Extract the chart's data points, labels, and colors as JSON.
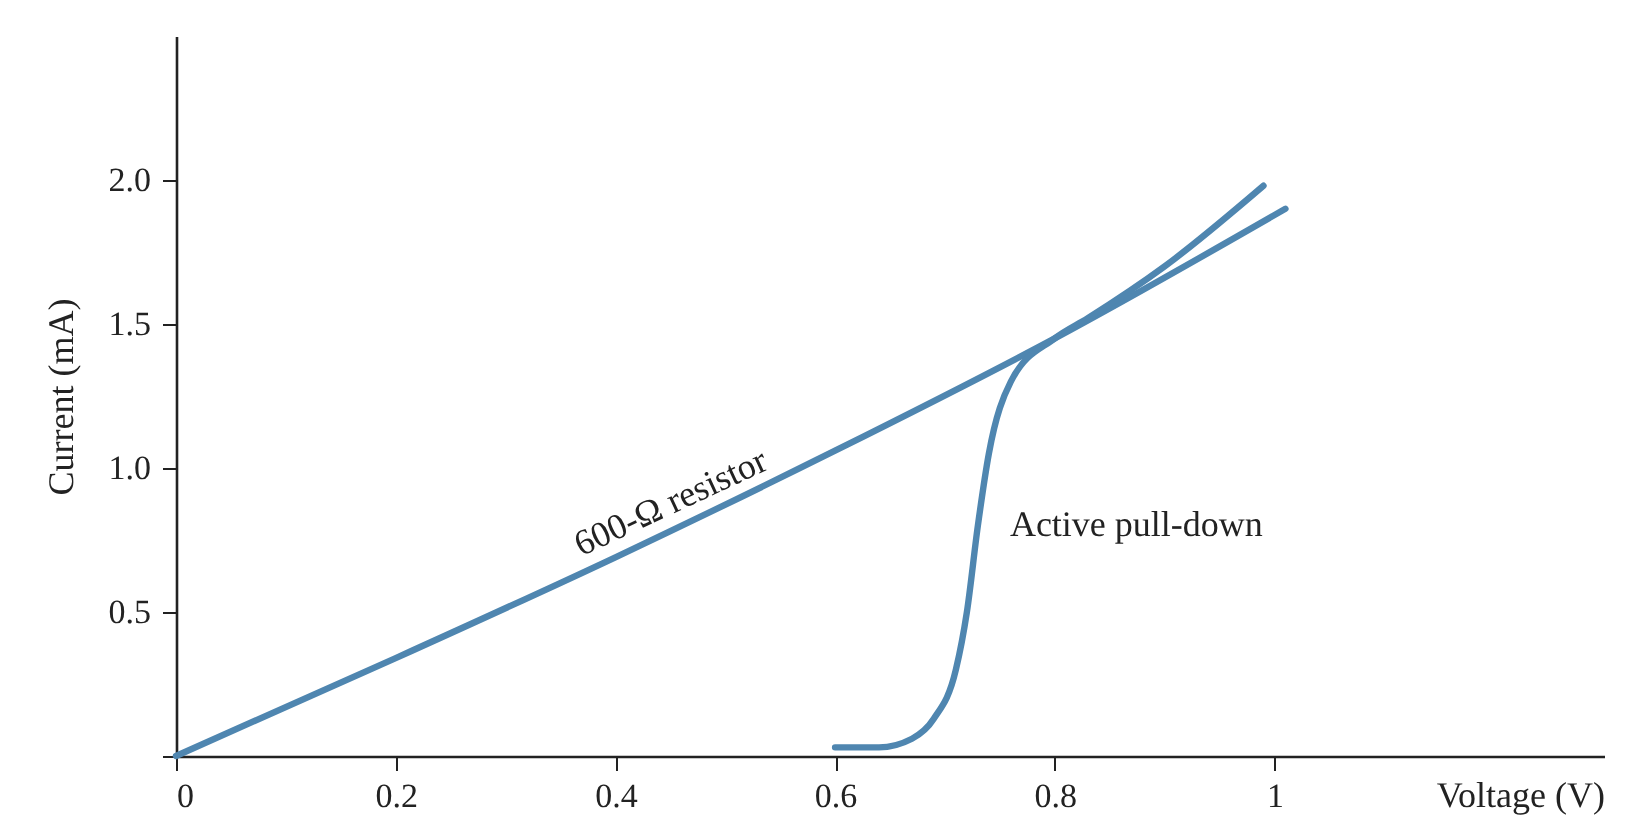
{
  "chart_data": {
    "type": "line",
    "xlabel": "Voltage (V)",
    "ylabel": "Current (mA)",
    "xlim": [
      0,
      1.3
    ],
    "ylim": [
      0,
      2.5
    ],
    "xticks": [
      0,
      0.2,
      0.4,
      0.6,
      0.8,
      1
    ],
    "yticks": [
      {
        "value": 0,
        "label": null
      },
      0.5,
      {
        "value": 1,
        "label": "1.0"
      },
      1.5,
      {
        "value": 2,
        "label": "2.0"
      }
    ],
    "grid": false,
    "legend": false,
    "marker": "none",
    "line_style": "solid",
    "series": [
      {
        "name": "600-Ω resistor",
        "color": "#4f86b0",
        "x": [
          0,
          0.2,
          0.4,
          0.6,
          0.8,
          1.01
        ],
        "values": [
          0,
          0.34,
          0.69,
          1.06,
          1.45,
          1.9
        ]
      },
      {
        "name": "Active pull-down",
        "color": "#4f86b0",
        "x": [
          0.6,
          0.64,
          0.67,
          0.69,
          0.71,
          0.72,
          0.73,
          0.74,
          0.76,
          0.8,
          0.83,
          0.9,
          0.99
        ],
        "values": [
          0.03,
          0.03,
          0.06,
          0.13,
          0.3,
          0.5,
          0.8,
          1.05,
          1.3,
          1.45,
          1.52,
          1.7,
          1.98
        ]
      }
    ]
  }
}
